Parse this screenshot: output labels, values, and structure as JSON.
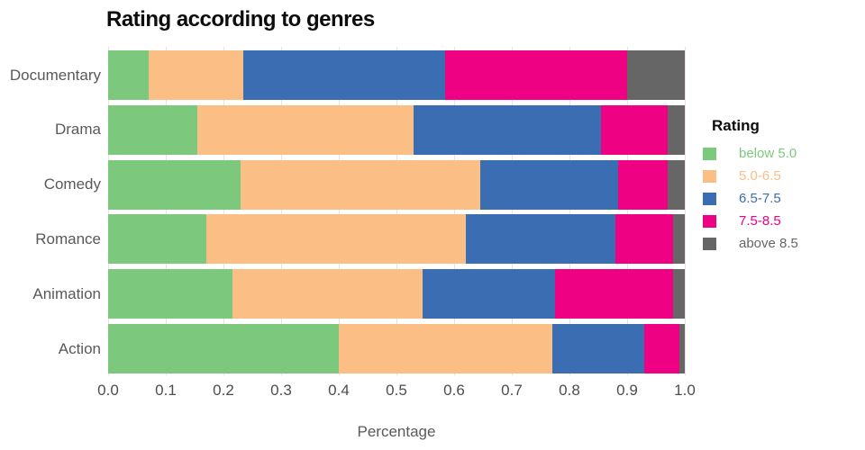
{
  "chart_data": {
    "type": "bar",
    "orientation": "horizontal",
    "stacked": true,
    "normalized": true,
    "title": "Rating according to genres",
    "xlabel": "Percentage",
    "ylabel": "",
    "xlim": [
      0.0,
      1.0
    ],
    "xticks": [
      "0.0",
      "0.1",
      "0.2",
      "0.3",
      "0.4",
      "0.5",
      "0.6",
      "0.7",
      "0.8",
      "0.9",
      "1.0"
    ],
    "grid": true,
    "categories": [
      "Documentary",
      "Drama",
      "Comedy",
      "Romance",
      "Animation",
      "Action"
    ],
    "legend": {
      "title": "Rating",
      "position": "right"
    },
    "series": [
      {
        "name": "below 5.0",
        "color": "#7CC87C",
        "values": [
          0.07,
          0.155,
          0.23,
          0.17,
          0.215,
          0.4
        ]
      },
      {
        "name": "5.0-6.5",
        "color": "#FBBE85",
        "values": [
          0.165,
          0.375,
          0.415,
          0.45,
          0.33,
          0.37
        ]
      },
      {
        "name": "6.5-7.5",
        "color": "#3A6DB1",
        "values": [
          0.35,
          0.325,
          0.24,
          0.26,
          0.23,
          0.16
        ]
      },
      {
        "name": "7.5-8.5",
        "color": "#EE0183",
        "values": [
          0.315,
          0.115,
          0.085,
          0.1,
          0.205,
          0.06
        ]
      },
      {
        "name": "above 8.5",
        "color": "#666666",
        "values": [
          0.1,
          0.03,
          0.03,
          0.02,
          0.02,
          0.01
        ]
      }
    ],
    "colors": {
      "axis_text": "#595959",
      "tick_text": "#4d4d4d",
      "grid_line": "#f2dede",
      "title_text": "#0d0d0d"
    }
  }
}
